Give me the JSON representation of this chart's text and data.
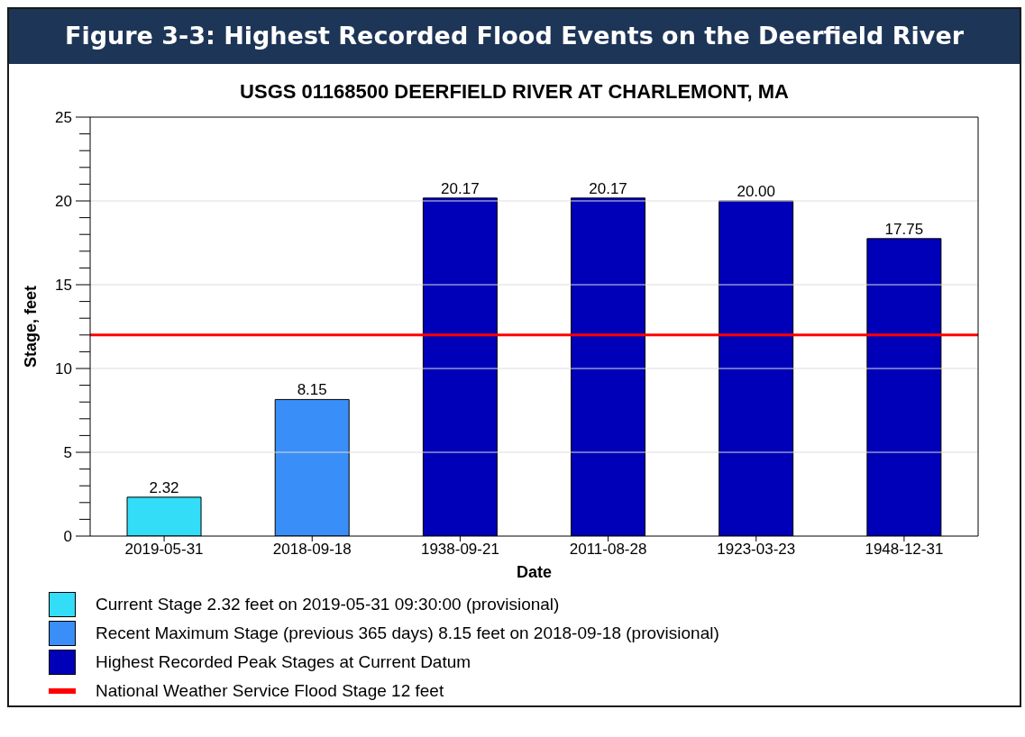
{
  "chart_data": {
    "type": "bar",
    "title": "Figure 3-3: Highest Recorded Flood Events on the Deerfield River",
    "subtitle": "USGS 01168500 DEERFIELD RIVER AT CHARLEMONT, MA",
    "xlabel": "Date",
    "ylabel": "Stage, feet",
    "categories": [
      "2019-05-31",
      "2018-09-18",
      "1938-09-21",
      "2011-08-28",
      "1923-03-23",
      "1948-12-31"
    ],
    "series": [
      {
        "name": "Current Stage 2.32 feet on 2019-05-31 09:30:00 (provisional)",
        "color": "#33ddf8",
        "values": [
          2.32,
          null,
          null,
          null,
          null,
          null
        ],
        "value_labels": [
          "2.32",
          null,
          null,
          null,
          null,
          null
        ]
      },
      {
        "name": "Recent Maximum Stage (previous 365 days) 8.15 feet on 2018-09-18 (provisional)",
        "color": "#3a8ef8",
        "values": [
          null,
          8.15,
          null,
          null,
          null,
          null
        ],
        "value_labels": [
          null,
          "8.15",
          null,
          null,
          null,
          null
        ]
      },
      {
        "name": "Highest Recorded Peak Stages at Current Datum",
        "color": "#0000b8",
        "values": [
          null,
          null,
          20.17,
          20.17,
          20.0,
          17.75
        ],
        "value_labels": [
          null,
          null,
          "20.17",
          "20.17",
          "20.00",
          "17.75"
        ]
      }
    ],
    "stacked": true,
    "ylim": [
      0,
      25
    ],
    "yticks": [
      0,
      {
        "value": 1,
        "label": null
      },
      {
        "value": 2,
        "label": null
      },
      {
        "value": 3,
        "label": null
      },
      {
        "value": 4,
        "label": null
      },
      5,
      {
        "value": 6,
        "label": null
      },
      {
        "value": 7,
        "label": null
      },
      {
        "value": 8,
        "label": null
      },
      {
        "value": 9,
        "label": null
      },
      10,
      {
        "value": 11,
        "label": null
      },
      {
        "value": 12,
        "label": null
      },
      {
        "value": 13,
        "label": null
      },
      {
        "value": 14,
        "label": null
      },
      15,
      {
        "value": 16,
        "label": null
      },
      {
        "value": 17,
        "label": null
      },
      {
        "value": 18,
        "label": null
      },
      {
        "value": 19,
        "label": null
      },
      20,
      {
        "value": 21,
        "label": null
      },
      {
        "value": 22,
        "label": null
      },
      {
        "value": 23,
        "label": null
      },
      {
        "value": 24,
        "label": null
      },
      25
    ],
    "ref_lines": [
      {
        "axis": "y",
        "value": 12,
        "label": "National Weather Service Flood Stage 12 feet",
        "color": "#ff0000"
      }
    ],
    "grid": "y",
    "legend": "bottom"
  }
}
